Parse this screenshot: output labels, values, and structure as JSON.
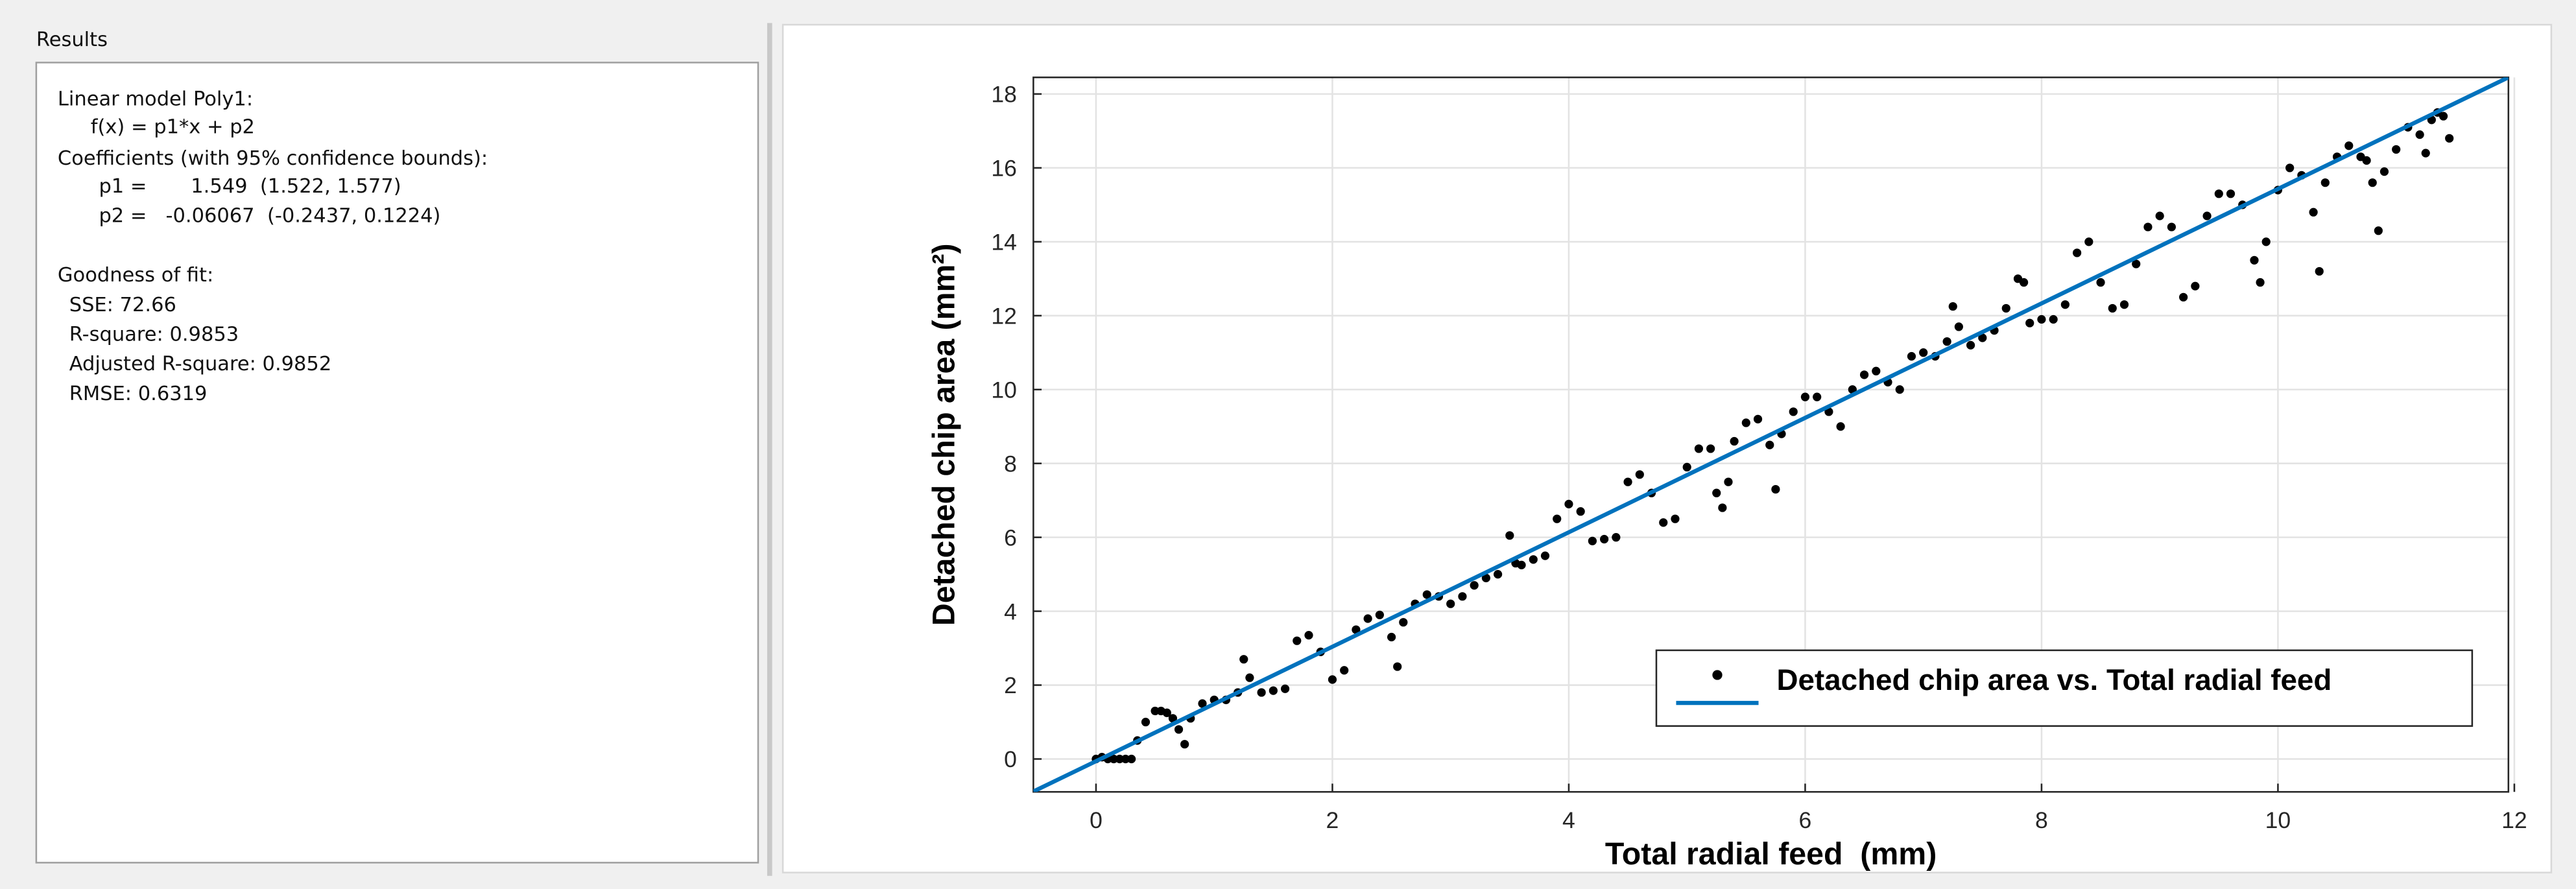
{
  "results": {
    "title": "Results",
    "lines": [
      "Linear model Poly1:",
      "f(x) = p1*x + p2",
      "Coefficients (with 95% confidence bounds):",
      "p1 =       1.549  (1.522, 1.577)",
      "p2 =   -0.06067  (-0.2437, 0.1224)",
      "Goodness of fit:",
      "SSE: 72.66",
      "R-square: 0.9853",
      "Adjusted R-square: 0.9852",
      "RMSE: 0.6319"
    ]
  },
  "chart_data": {
    "type": "scatter",
    "xlabel": "Total radial feed  (mm)",
    "ylabel": "Detached chip area (mm²)",
    "xlim": [
      -0.53,
      11.95
    ],
    "ylim": [
      -0.89,
      18.45
    ],
    "xticks": [
      0,
      2,
      4,
      6,
      8,
      10,
      12
    ],
    "yticks": [
      0,
      2,
      4,
      6,
      8,
      10,
      12,
      14,
      16,
      18
    ],
    "grid": true,
    "legend": "lower right",
    "series": [
      {
        "name": "Detached chip area vs. Total radial feed",
        "color": "#000000",
        "x": [
          0,
          0.05,
          0.1,
          0.15,
          0.2,
          0.25,
          0.3,
          0.35,
          0.42,
          0.5,
          0.55,
          0.6,
          0.65,
          0.7,
          0.75,
          0.8,
          0.9,
          1.0,
          1.1,
          1.2,
          1.25,
          1.3,
          1.4,
          1.5,
          1.6,
          1.7,
          1.8,
          1.9,
          2.0,
          2.1,
          2.2,
          2.3,
          2.4,
          2.5,
          2.55,
          2.6,
          2.7,
          2.8,
          2.9,
          3.0,
          3.1,
          3.2,
          3.3,
          3.4,
          3.5,
          3.55,
          3.6,
          3.7,
          3.8,
          3.9,
          4.0,
          4.1,
          4.2,
          4.3,
          4.4,
          4.5,
          4.6,
          4.7,
          4.8,
          4.9,
          5.0,
          5.1,
          5.2,
          5.25,
          5.3,
          5.35,
          5.4,
          5.5,
          5.6,
          5.7,
          5.75,
          5.8,
          5.9,
          6.0,
          6.1,
          6.2,
          6.3,
          6.4,
          6.5,
          6.6,
          6.7,
          6.8,
          6.9,
          7.0,
          7.1,
          7.2,
          7.25,
          7.3,
          7.4,
          7.5,
          7.6,
          7.7,
          7.8,
          7.85,
          7.9,
          8.0,
          8.1,
          8.2,
          8.3,
          8.4,
          8.5,
          8.6,
          8.7,
          8.8,
          8.9,
          9.0,
          9.1,
          9.2,
          9.3,
          9.4,
          9.5,
          9.6,
          9.7,
          9.8,
          9.85,
          9.9,
          10.0,
          10.1,
          10.2,
          10.3,
          10.35,
          10.4,
          10.5,
          10.6,
          10.7,
          10.75,
          10.8,
          10.85,
          10.9,
          11.0,
          11.1,
          11.2,
          11.25,
          11.3,
          11.35,
          11.4,
          11.45
        ],
        "values": [
          0,
          0.05,
          0,
          0,
          0,
          0,
          0,
          0.5,
          1.0,
          1.3,
          1.3,
          1.25,
          1.1,
          0.8,
          0.4,
          1.1,
          1.5,
          1.6,
          1.6,
          1.8,
          2.7,
          2.2,
          1.8,
          1.85,
          1.9,
          3.2,
          3.35,
          2.9,
          2.15,
          2.4,
          3.5,
          3.8,
          3.9,
          3.3,
          2.5,
          3.7,
          4.2,
          4.45,
          4.4,
          4.2,
          4.4,
          4.7,
          4.9,
          5.0,
          6.05,
          5.3,
          5.25,
          5.4,
          5.5,
          6.5,
          6.9,
          6.7,
          5.9,
          5.95,
          6.0,
          7.5,
          7.7,
          7.2,
          6.4,
          6.5,
          7.9,
          8.4,
          8.4,
          7.2,
          6.8,
          7.5,
          8.6,
          9.1,
          9.2,
          8.5,
          7.3,
          8.8,
          9.4,
          9.8,
          9.8,
          9.4,
          9.0,
          10.0,
          10.4,
          10.5,
          10.2,
          10.0,
          10.9,
          11.0,
          10.9,
          11.3,
          12.25,
          11.7,
          11.2,
          11.4,
          11.6,
          12.2,
          13.0,
          12.9,
          11.8,
          11.9,
          11.9,
          12.3,
          13.7,
          14.0,
          12.9,
          12.2,
          12.3,
          13.4,
          14.4,
          14.7,
          14.4,
          12.5,
          12.8,
          14.7,
          15.3,
          15.3,
          15.0,
          13.5,
          12.9,
          14.0,
          15.4,
          16.0,
          15.8,
          14.8,
          13.2,
          15.6,
          16.3,
          16.6,
          16.3,
          16.2,
          15.6,
          14.3,
          15.9,
          16.5,
          17.1,
          16.9,
          16.4,
          17.3,
          17.5,
          17.4,
          16.8
        ]
      },
      {
        "color": "#0072bd",
        "x": [
          -0.53,
          11.95
        ],
        "values": [
          -0.88,
          18.45
        ]
      }
    ]
  }
}
